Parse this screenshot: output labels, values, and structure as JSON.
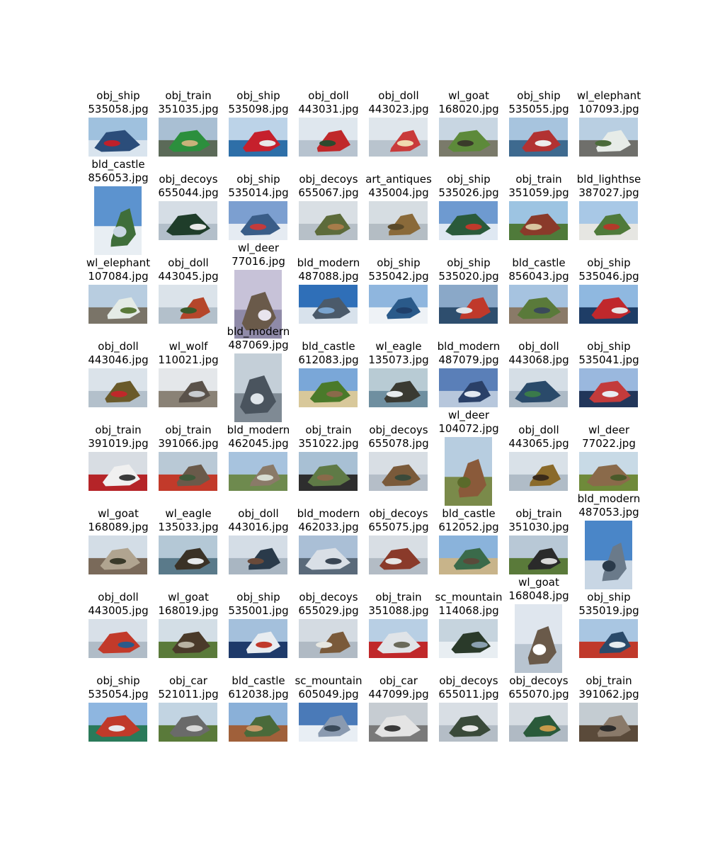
{
  "figure": {
    "rows": [
      [
        {
          "label": "obj_ship",
          "file": "535058.jpg",
          "orientation": "landscape",
          "palette": [
            "#9fc1de",
            "#d9e4ee",
            "#2b4d7a",
            "#c0202a"
          ]
        },
        {
          "label": "obj_train",
          "file": "351035.jpg",
          "orientation": "landscape",
          "palette": [
            "#a9bfd3",
            "#5b6a58",
            "#2c8f3d",
            "#c9b27a"
          ]
        },
        {
          "label": "obj_ship",
          "file": "535098.jpg",
          "orientation": "landscape",
          "palette": [
            "#bcd3e8",
            "#2e6fa8",
            "#c6202c",
            "#e8e8e8"
          ]
        },
        {
          "label": "obj_doll",
          "file": "443031.jpg",
          "orientation": "landscape",
          "palette": [
            "#dfe7ee",
            "#b7c3cf",
            "#c0282a",
            "#2c4a2e"
          ]
        },
        {
          "label": "obj_doll",
          "file": "443023.jpg",
          "orientation": "landscape",
          "palette": [
            "#dfe6ec",
            "#b9c4ce",
            "#c93a3a",
            "#f0d9b0"
          ]
        },
        {
          "label": "wl_goat",
          "file": "168020.jpg",
          "orientation": "landscape",
          "palette": [
            "#c8d6e2",
            "#7a7a6a",
            "#5d8a3a",
            "#3a3a2a"
          ]
        },
        {
          "label": "obj_ship",
          "file": "535055.jpg",
          "orientation": "landscape",
          "palette": [
            "#a7c4de",
            "#3e6a8f",
            "#b23232",
            "#ededed"
          ]
        },
        {
          "label": "wl_elephant",
          "file": "107093.jpg",
          "orientation": "landscape",
          "palette": [
            "#b9cfe2",
            "#6f6f6b",
            "#e7ece8",
            "#4b6b3a"
          ]
        }
      ],
      [
        {
          "label": "bld_castle",
          "file": "856053.jpg",
          "orientation": "portrait",
          "palette": [
            "#5c93cf",
            "#e8eef3",
            "#3f6e3a",
            "#c9d6e2"
          ]
        },
        {
          "label": "obj_decoys",
          "file": "655044.jpg",
          "orientation": "landscape",
          "palette": [
            "#d5dde5",
            "#b3bfca",
            "#1f3d2a",
            "#e8e8e8"
          ]
        },
        {
          "label": "obj_ship",
          "file": "535014.jpg",
          "orientation": "landscape",
          "palette": [
            "#7c9fd0",
            "#e5ebf2",
            "#3a5d88",
            "#c33b3b"
          ]
        },
        {
          "label": "obj_decoys",
          "file": "655067.jpg",
          "orientation": "landscape",
          "palette": [
            "#d9dfe4",
            "#b7c0c8",
            "#5d6b3a",
            "#a87c4a"
          ]
        },
        {
          "label": "art_antiques",
          "file": "435004.jpg",
          "orientation": "landscape",
          "palette": [
            "#d6dde2",
            "#b4bdc4",
            "#8a6a3a",
            "#5a4a2a"
          ]
        },
        {
          "label": "obj_ship",
          "file": "535026.jpg",
          "orientation": "landscape",
          "palette": [
            "#6e9ad0",
            "#dfe8f2",
            "#2a5a3a",
            "#c0392b"
          ]
        },
        {
          "label": "obj_train",
          "file": "351059.jpg",
          "orientation": "landscape",
          "palette": [
            "#9dc4e2",
            "#4f7a3a",
            "#8a3a2a",
            "#d8c6a0"
          ]
        },
        {
          "label": "bld_lighthse",
          "file": "387027.jpg",
          "orientation": "landscape",
          "palette": [
            "#a8c8e6",
            "#e6e6e2",
            "#4f7a3a",
            "#b33a2a"
          ]
        }
      ],
      [
        {
          "label": "wl_elephant",
          "file": "107084.jpg",
          "orientation": "landscape",
          "palette": [
            "#b8cde0",
            "#7a7468",
            "#e4ebe6",
            "#5a7a3a"
          ]
        },
        {
          "label": "obj_doll",
          "file": "443045.jpg",
          "orientation": "landscape",
          "palette": [
            "#dbe3ea",
            "#b3c0cb",
            "#b5462a",
            "#3a5a2a"
          ]
        },
        {
          "label": "wl_deer",
          "file": "77016.jpg",
          "orientation": "portrait",
          "palette": [
            "#c7c2d8",
            "#8f8aa8",
            "#6a5a4a",
            "#e8e4ee"
          ]
        },
        {
          "label": "bld_modern",
          "file": "487088.jpg",
          "orientation": "landscape",
          "palette": [
            "#2f6fb8",
            "#d8e2ec",
            "#4b5a6a",
            "#7aa4cf"
          ]
        },
        {
          "label": "obj_ship",
          "file": "535042.jpg",
          "orientation": "landscape",
          "palette": [
            "#8fb6de",
            "#eef2f6",
            "#2a5a8a",
            "#1f3f6a"
          ]
        },
        {
          "label": "obj_ship",
          "file": "535020.jpg",
          "orientation": "landscape",
          "palette": [
            "#8aa8c8",
            "#2e4e6e",
            "#c0392b",
            "#e2e6ea"
          ]
        },
        {
          "label": "bld_castle",
          "file": "856043.jpg",
          "orientation": "landscape",
          "palette": [
            "#a6c3e0",
            "#8a7a68",
            "#5a7a3a",
            "#3a4a5a"
          ]
        },
        {
          "label": "obj_ship",
          "file": "535046.jpg",
          "orientation": "landscape",
          "palette": [
            "#8fb8e0",
            "#1e3d66",
            "#c0282c",
            "#e6e6e6"
          ]
        }
      ],
      [
        {
          "label": "obj_doll",
          "file": "443046.jpg",
          "orientation": "landscape",
          "palette": [
            "#dbe3ea",
            "#b3c0cb",
            "#6a5a2a",
            "#c0282a"
          ]
        },
        {
          "label": "wl_wolf",
          "file": "110021.jpg",
          "orientation": "landscape",
          "palette": [
            "#e4e7ea",
            "#8a8276",
            "#5a524a",
            "#c8ccd0"
          ]
        },
        {
          "label": "bld_modern",
          "file": "487069.jpg",
          "orientation": "portrait",
          "palette": [
            "#c4cfd8",
            "#7f8a94",
            "#4a545e",
            "#dfe5ea"
          ]
        },
        {
          "label": "bld_castle",
          "file": "612083.jpg",
          "orientation": "landscape",
          "palette": [
            "#7aa7d8",
            "#d8c89a",
            "#4a7a2a",
            "#8a6a4a"
          ]
        },
        {
          "label": "wl_eagle",
          "file": "135073.jpg",
          "orientation": "landscape",
          "palette": [
            "#b8cbd4",
            "#6f8fa0",
            "#3a3a32",
            "#e8ecee"
          ]
        },
        {
          "label": "bld_modern",
          "file": "487079.jpg",
          "orientation": "landscape",
          "palette": [
            "#5a7fb8",
            "#b7c7dc",
            "#2a4068",
            "#e2e8f0"
          ]
        },
        {
          "label": "obj_doll",
          "file": "443068.jpg",
          "orientation": "landscape",
          "palette": [
            "#d5dee6",
            "#adbac6",
            "#2a4a6a",
            "#3a7a4a"
          ]
        },
        {
          "label": "obj_ship",
          "file": "535041.jpg",
          "orientation": "landscape",
          "palette": [
            "#9ab8de",
            "#22365a",
            "#c33b3b",
            "#e8ecf2"
          ]
        }
      ],
      [
        {
          "label": "obj_train",
          "file": "391019.jpg",
          "orientation": "landscape",
          "palette": [
            "#d8dde3",
            "#b52428",
            "#f0f0f0",
            "#3a3a3a"
          ]
        },
        {
          "label": "obj_train",
          "file": "391066.jpg",
          "orientation": "landscape",
          "palette": [
            "#b9c9d6",
            "#c23a2a",
            "#6a5a4a",
            "#3f5a3a"
          ]
        },
        {
          "label": "bld_modern",
          "file": "462045.jpg",
          "orientation": "landscape",
          "palette": [
            "#a7c3de",
            "#6e8a4e",
            "#8a7a68",
            "#d8ddd2"
          ]
        },
        {
          "label": "obj_train",
          "file": "351022.jpg",
          "orientation": "landscape",
          "palette": [
            "#a8c0d4",
            "#2e2e2e",
            "#5f7a46",
            "#8a6a4a"
          ]
        },
        {
          "label": "obj_decoys",
          "file": "655078.jpg",
          "orientation": "landscape",
          "palette": [
            "#d8dee4",
            "#b5bec8",
            "#7a5a3a",
            "#3a4a3a"
          ]
        },
        {
          "label": "wl_deer",
          "file": "104072.jpg",
          "orientation": "portrait",
          "palette": [
            "#b7cde0",
            "#7a8a4a",
            "#8a5a3a",
            "#5a6a2a"
          ]
        },
        {
          "label": "obj_doll",
          "file": "443065.jpg",
          "orientation": "landscape",
          "palette": [
            "#d9e1e8",
            "#b0bcc7",
            "#8a6a2a",
            "#3a2a1a"
          ]
        },
        {
          "label": "wl_deer",
          "file": "77022.jpg",
          "orientation": "landscape",
          "palette": [
            "#c8dae6",
            "#6f8a3a",
            "#8a6a4a",
            "#4a5a2a"
          ]
        }
      ],
      [
        {
          "label": "wl_goat",
          "file": "168089.jpg",
          "orientation": "landscape",
          "palette": [
            "#d3dde6",
            "#7a6a5a",
            "#b0a490",
            "#3a3a2a"
          ]
        },
        {
          "label": "wl_eagle",
          "file": "135033.jpg",
          "orientation": "landscape",
          "palette": [
            "#b4c8d6",
            "#5a7a8a",
            "#3a3226",
            "#e6eaec"
          ]
        },
        {
          "label": "obj_doll",
          "file": "443016.jpg",
          "orientation": "landscape",
          "palette": [
            "#d4dde6",
            "#a9b6c2",
            "#2a3a4a",
            "#6a4a3a"
          ]
        },
        {
          "label": "bld_modern",
          "file": "462033.jpg",
          "orientation": "landscape",
          "palette": [
            "#aabfd6",
            "#5a6a7a",
            "#d9dfe6",
            "#3a4654"
          ]
        },
        {
          "label": "obj_decoys",
          "file": "655075.jpg",
          "orientation": "landscape",
          "palette": [
            "#d8dee4",
            "#b3bcc5",
            "#8a3a2a",
            "#e6e6e6"
          ]
        },
        {
          "label": "bld_castle",
          "file": "612052.jpg",
          "orientation": "landscape",
          "palette": [
            "#8ab3db",
            "#c8b48a",
            "#3a6a4a",
            "#5a4a3a"
          ]
        },
        {
          "label": "obj_train",
          "file": "351030.jpg",
          "orientation": "landscape",
          "palette": [
            "#b8c8d6",
            "#5a7a3a",
            "#2a2a2a",
            "#d8d8d8"
          ]
        },
        {
          "label": "bld_modern",
          "file": "487053.jpg",
          "orientation": "portrait",
          "palette": [
            "#4a86c8",
            "#c8d6e4",
            "#6a7a8a",
            "#2a3a4a"
          ]
        }
      ],
      [
        {
          "label": "obj_doll",
          "file": "443005.jpg",
          "orientation": "landscape",
          "palette": [
            "#d8e0e8",
            "#b0bcc7",
            "#c23a2a",
            "#2a5a8a"
          ]
        },
        {
          "label": "wl_goat",
          "file": "168019.jpg",
          "orientation": "landscape",
          "palette": [
            "#d3dee6",
            "#5a7a3a",
            "#4a3a2a",
            "#b8b2a2"
          ]
        },
        {
          "label": "obj_ship",
          "file": "535001.jpg",
          "orientation": "landscape",
          "palette": [
            "#a4c0dc",
            "#1e3a6a",
            "#e8ecf0",
            "#c0392b"
          ]
        },
        {
          "label": "obj_decoys",
          "file": "655029.jpg",
          "orientation": "landscape",
          "palette": [
            "#d4dbe2",
            "#b0bac4",
            "#7a5a3a",
            "#e6e6e0"
          ]
        },
        {
          "label": "obj_train",
          "file": "351088.jpg",
          "orientation": "landscape",
          "palette": [
            "#b8cfe4",
            "#c0282a",
            "#e0e4e8",
            "#6a6a5a"
          ]
        },
        {
          "label": "sc_mountain",
          "file": "114068.jpg",
          "orientation": "landscape",
          "palette": [
            "#c6d4de",
            "#e8eef2",
            "#2a3a2a",
            "#8aa0b0"
          ]
        },
        {
          "label": "wl_goat",
          "file": "168048.jpg",
          "orientation": "portrait",
          "palette": [
            "#dfe6ee",
            "#b8c4d0",
            "#6a5a4a",
            "#ffffff"
          ]
        },
        {
          "label": "obj_ship",
          "file": "535019.jpg",
          "orientation": "landscape",
          "palette": [
            "#a9c6e2",
            "#c0392b",
            "#2a4a6a",
            "#e6ecf0"
          ]
        }
      ],
      [
        {
          "label": "obj_ship",
          "file": "535054.jpg",
          "orientation": "landscape",
          "palette": [
            "#8eb6e0",
            "#2a7a5a",
            "#c03a2a",
            "#e6eaee"
          ]
        },
        {
          "label": "obj_car",
          "file": "521011.jpg",
          "orientation": "landscape",
          "palette": [
            "#c2d4e2",
            "#5a7a3a",
            "#6a6a6a",
            "#d8d8d8"
          ]
        },
        {
          "label": "bld_castle",
          "file": "612038.jpg",
          "orientation": "landscape",
          "palette": [
            "#8ab0d8",
            "#a0603a",
            "#4a6a3a",
            "#c89a6a"
          ]
        },
        {
          "label": "sc_mountain",
          "file": "605049.jpg",
          "orientation": "landscape",
          "palette": [
            "#4a7ab8",
            "#e8eef4",
            "#8a9ab0",
            "#3a4a5a"
          ]
        },
        {
          "label": "obj_car",
          "file": "447099.jpg",
          "orientation": "landscape",
          "palette": [
            "#c6ccd2",
            "#7a7a7a",
            "#e4e4e4",
            "#3a3a3a"
          ]
        },
        {
          "label": "obj_decoys",
          "file": "655011.jpg",
          "orientation": "landscape",
          "palette": [
            "#d8dee4",
            "#b4bdc6",
            "#3a4a3a",
            "#e8e8e8"
          ]
        },
        {
          "label": "obj_decoys",
          "file": "655070.jpg",
          "orientation": "landscape",
          "palette": [
            "#d6dce2",
            "#b0bac4",
            "#2a5a3a",
            "#c89a4a"
          ]
        },
        {
          "label": "obj_train",
          "file": "391062.jpg",
          "orientation": "landscape",
          "palette": [
            "#c4ccd2",
            "#5a4a3a",
            "#8a7a6a",
            "#2a2a2a"
          ]
        }
      ]
    ]
  }
}
